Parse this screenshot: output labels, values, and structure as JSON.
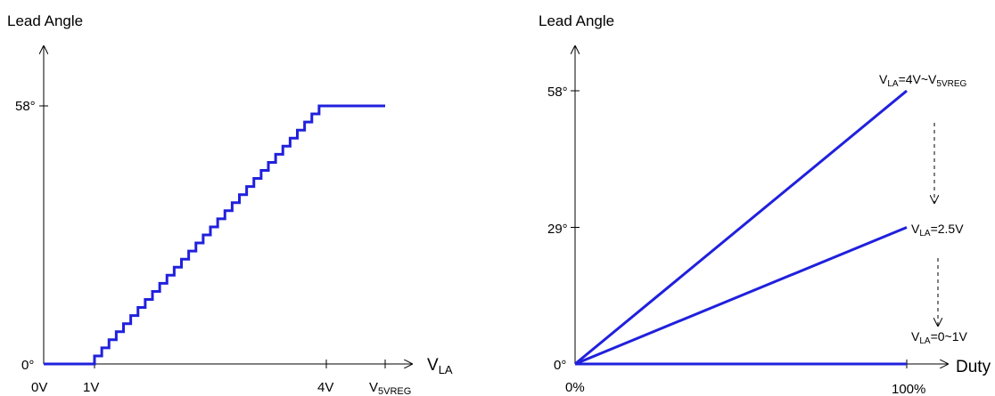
{
  "colors": {
    "series": "#2020dd",
    "axis": "#000000"
  },
  "chart_data": [
    {
      "type": "line",
      "ylabel": "Lead Angle",
      "xlabel_main": "V",
      "xlabel_sub": "LA",
      "y_ticks": [
        {
          "value": 0,
          "label": "0°"
        },
        {
          "value": 58,
          "label": "58°"
        }
      ],
      "x_ticks": [
        {
          "value": 0,
          "label": "0V",
          "main": "0V",
          "sub": ""
        },
        {
          "value": 1,
          "label": "1V",
          "main": "1V",
          "sub": ""
        },
        {
          "value": 4,
          "label": "4V",
          "main": "4V",
          "sub": ""
        },
        {
          "value": 5,
          "label": "V5VREG",
          "main": "V",
          "sub": "5VREG"
        }
      ],
      "series": [
        {
          "style": "staircase",
          "points": [
            [
              0,
              0
            ],
            [
              1,
              0
            ],
            [
              4,
              58
            ],
            [
              5,
              58
            ]
          ],
          "steps": 32
        }
      ]
    },
    {
      "type": "line",
      "ylabel": "Lead Angle",
      "xlabel": "Duty",
      "y_ticks": [
        {
          "value": 0,
          "label": "0°"
        },
        {
          "value": 29,
          "label": "29°"
        },
        {
          "value": 58,
          "label": "58°"
        }
      ],
      "x_ticks": [
        {
          "value": 0,
          "label": "0%"
        },
        {
          "value": 100,
          "label": "100%"
        }
      ],
      "series": [
        {
          "label": "VLA=4V~V5VREG",
          "label_parts": [
            {
              "t": "V"
            },
            {
              "t": "LA",
              "sub": true
            },
            {
              "t": "=4V~V"
            },
            {
              "t": "5VREG",
              "sub": true
            }
          ],
          "x": [
            0,
            100
          ],
          "y": [
            0,
            58
          ]
        },
        {
          "label": "VLA=2.5V",
          "label_parts": [
            {
              "t": "V"
            },
            {
              "t": "LA",
              "sub": true
            },
            {
              "t": "=2.5V"
            }
          ],
          "x": [
            0,
            100
          ],
          "y": [
            0,
            29
          ]
        },
        {
          "label": "VLA=0~1V",
          "label_parts": [
            {
              "t": "V"
            },
            {
              "t": "LA",
              "sub": true
            },
            {
              "t": "=0~1V"
            }
          ],
          "x": [
            0,
            100
          ],
          "y": [
            0,
            0
          ]
        }
      ]
    }
  ]
}
